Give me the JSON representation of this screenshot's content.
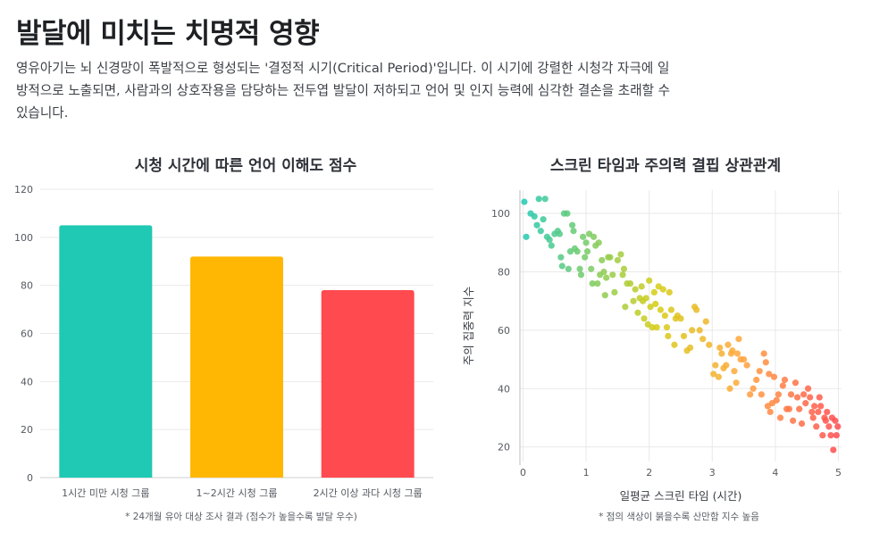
{
  "page": {
    "title": "발달에 미치는 치명적 영향",
    "description": "영유아기는 뇌 신경망이 폭발적으로 형성되는 '결정적 시기(Critical Period)'입니다. 이 시기에 강렬한 시청각 자극에 일방적으로 노출되면, 사람과의 상호작용을 담당하는 전두엽 발달이 저하되고 언어 및 인지 능력에 심각한 결손을 초래할 수 있습니다."
  },
  "colors": {
    "teal": "#20c9b3",
    "yellow": "#ffb703",
    "red": "#ff4a4f",
    "grid": "#e9e9e9"
  },
  "chart_data": [
    {
      "type": "bar",
      "title": "시청 시간에 따른 언어 이해도 점수",
      "categories": [
        "1시간 미만 시청 그룹",
        "1~2시간 시청 그룹",
        "2시간 이상 과다 시청 그룹"
      ],
      "values": [
        105,
        92,
        78
      ],
      "bar_colors": [
        "#20c9b3",
        "#ffb703",
        "#ff4a4f"
      ],
      "xlabel": "",
      "ylabel": "",
      "ylim": [
        0,
        120
      ],
      "yticks": [
        0,
        20,
        40,
        60,
        80,
        100,
        120
      ],
      "grid": true,
      "note": "* 24개월 유아 대상 조사 결과 (점수가 높을수록 발달 우수)"
    },
    {
      "type": "scatter",
      "title": "스크린 타임과 주의력 결핍 상관관계",
      "xlabel": "일평균 스크린 타임 (시간)",
      "ylabel": "주의 집중력 지수",
      "xlim": [
        -0.05,
        5.05
      ],
      "ylim": [
        15,
        108
      ],
      "xticks": [
        0,
        1,
        2,
        3,
        4,
        5
      ],
      "yticks": [
        20,
        40,
        60,
        80,
        100
      ],
      "grid": true,
      "note": "* 점의 색상이 붉을수록 산만함 지수 높음",
      "trend": "y ≈ 101 - 16x (noisy)",
      "points": [
        [
          0.02,
          104
        ],
        [
          0.05,
          92
        ],
        [
          0.12,
          100
        ],
        [
          0.18,
          99
        ],
        [
          0.22,
          96
        ],
        [
          0.25,
          105
        ],
        [
          0.28,
          94
        ],
        [
          0.32,
          98
        ],
        [
          0.35,
          105
        ],
        [
          0.38,
          92
        ],
        [
          0.42,
          91
        ],
        [
          0.45,
          89
        ],
        [
          0.5,
          93
        ],
        [
          0.55,
          94
        ],
        [
          0.58,
          93
        ],
        [
          0.6,
          85
        ],
        [
          0.62,
          82
        ],
        [
          0.65,
          100
        ],
        [
          0.7,
          100
        ],
        [
          0.72,
          81
        ],
        [
          0.75,
          87
        ],
        [
          0.78,
          96
        ],
        [
          0.8,
          94
        ],
        [
          0.82,
          88
        ],
        [
          0.86,
          87
        ],
        [
          0.9,
          81
        ],
        [
          0.92,
          79
        ],
        [
          0.95,
          92
        ],
        [
          0.98,
          85
        ],
        [
          1.0,
          90
        ],
        [
          1.02,
          87
        ],
        [
          1.05,
          93
        ],
        [
          1.08,
          81
        ],
        [
          1.1,
          76
        ],
        [
          1.12,
          92
        ],
        [
          1.15,
          89
        ],
        [
          1.18,
          76
        ],
        [
          1.2,
          90
        ],
        [
          1.22,
          79
        ],
        [
          1.25,
          84
        ],
        [
          1.28,
          80
        ],
        [
          1.3,
          72
        ],
        [
          1.32,
          78
        ],
        [
          1.35,
          85
        ],
        [
          1.38,
          85
        ],
        [
          1.42,
          79
        ],
        [
          1.45,
          73
        ],
        [
          1.5,
          84
        ],
        [
          1.55,
          86
        ],
        [
          1.58,
          79
        ],
        [
          1.6,
          81
        ],
        [
          1.62,
          68
        ],
        [
          1.65,
          76
        ],
        [
          1.7,
          76
        ],
        [
          1.75,
          70
        ],
        [
          1.78,
          74
        ],
        [
          1.82,
          66
        ],
        [
          1.85,
          71
        ],
        [
          1.88,
          75
        ],
        [
          1.9,
          70
        ],
        [
          1.92,
          64
        ],
        [
          1.95,
          71
        ],
        [
          1.98,
          62
        ],
        [
          2.0,
          77
        ],
        [
          2.02,
          68
        ],
        [
          2.05,
          61
        ],
        [
          2.08,
          73
        ],
        [
          2.1,
          69
        ],
        [
          2.12,
          61
        ],
        [
          2.15,
          75
        ],
        [
          2.18,
          67
        ],
        [
          2.22,
          74
        ],
        [
          2.25,
          65
        ],
        [
          2.28,
          61
        ],
        [
          2.3,
          58
        ],
        [
          2.32,
          73
        ],
        [
          2.35,
          67
        ],
        [
          2.4,
          55
        ],
        [
          2.42,
          64
        ],
        [
          2.45,
          65
        ],
        [
          2.5,
          64
        ],
        [
          2.55,
          58
        ],
        [
          2.6,
          53
        ],
        [
          2.65,
          54
        ],
        [
          2.68,
          60
        ],
        [
          2.72,
          68
        ],
        [
          2.75,
          67
        ],
        [
          2.8,
          60
        ],
        [
          2.85,
          57
        ],
        [
          2.9,
          63
        ],
        [
          2.95,
          55
        ],
        [
          3.02,
          45
        ],
        [
          3.05,
          48
        ],
        [
          3.1,
          44
        ],
        [
          3.12,
          54
        ],
        [
          3.15,
          52
        ],
        [
          3.18,
          47
        ],
        [
          3.22,
          48
        ],
        [
          3.25,
          55
        ],
        [
          3.28,
          40
        ],
        [
          3.3,
          52
        ],
        [
          3.32,
          53
        ],
        [
          3.35,
          46
        ],
        [
          3.38,
          42
        ],
        [
          3.4,
          52
        ],
        [
          3.42,
          57
        ],
        [
          3.45,
          50
        ],
        [
          3.5,
          50
        ],
        [
          3.55,
          48
        ],
        [
          3.6,
          38
        ],
        [
          3.65,
          40
        ],
        [
          3.7,
          43
        ],
        [
          3.75,
          46
        ],
        [
          3.78,
          38
        ],
        [
          3.82,
          52
        ],
        [
          3.85,
          49
        ],
        [
          3.88,
          34
        ],
        [
          3.9,
          45
        ],
        [
          3.92,
          32
        ],
        [
          3.95,
          35
        ],
        [
          3.98,
          44
        ],
        [
          4.02,
          36
        ],
        [
          4.05,
          38
        ],
        [
          4.08,
          30
        ],
        [
          4.12,
          41
        ],
        [
          4.15,
          43
        ],
        [
          4.18,
          33
        ],
        [
          4.22,
          33
        ],
        [
          4.25,
          38
        ],
        [
          4.28,
          29
        ],
        [
          4.32,
          42
        ],
        [
          4.35,
          37
        ],
        [
          4.38,
          33
        ],
        [
          4.42,
          28
        ],
        [
          4.45,
          38
        ],
        [
          4.48,
          35
        ],
        [
          4.52,
          40
        ],
        [
          4.55,
          37
        ],
        [
          4.58,
          32
        ],
        [
          4.6,
          30
        ],
        [
          4.62,
          34
        ],
        [
          4.65,
          27
        ],
        [
          4.68,
          32
        ],
        [
          4.7,
          37
        ],
        [
          4.72,
          34
        ],
        [
          4.75,
          24
        ],
        [
          4.78,
          30
        ],
        [
          4.8,
          29
        ],
        [
          4.82,
          32
        ],
        [
          4.85,
          27
        ],
        [
          4.88,
          24
        ],
        [
          4.9,
          30
        ],
        [
          4.92,
          19
        ],
        [
          4.95,
          29
        ],
        [
          4.97,
          24
        ],
        [
          4.99,
          27
        ]
      ]
    }
  ]
}
